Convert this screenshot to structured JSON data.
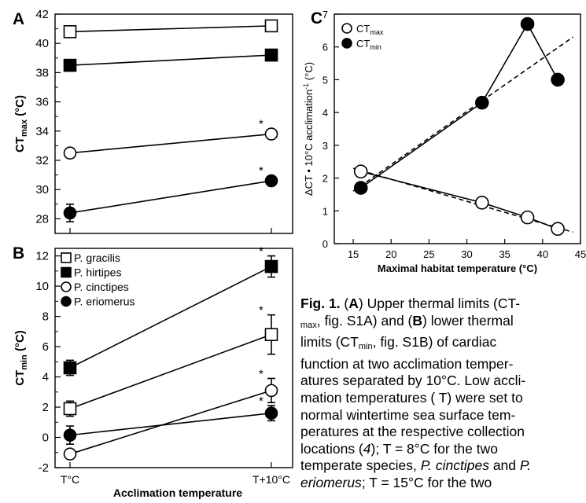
{
  "chart_data": [
    {
      "id": "A",
      "type": "line",
      "panel_label": "A",
      "ylabel": "CTmax (°C)",
      "ylabel_main": "CT",
      "ylabel_sub": "max",
      "ylabel_unit": " (°C)",
      "ylim": [
        27,
        42
      ],
      "yticks": [
        28,
        30,
        32,
        34,
        36,
        38,
        40,
        42
      ],
      "categories": [
        "T°C",
        "T+10°C"
      ],
      "series": [
        {
          "marker": "open-square",
          "values": [
            40.8,
            41.2
          ],
          "err": [
            0.3,
            0.3
          ],
          "sig": [
            false,
            false
          ]
        },
        {
          "marker": "filled-square",
          "values": [
            38.5,
            39.2
          ],
          "err": [
            0.1,
            0.1
          ],
          "sig": [
            false,
            false
          ]
        },
        {
          "marker": "open-circle",
          "values": [
            32.5,
            33.8
          ],
          "err": [
            0.1,
            0.1
          ],
          "sig": [
            false,
            true
          ]
        },
        {
          "marker": "filled-circle",
          "values": [
            28.4,
            30.6
          ],
          "err": [
            0.6,
            0.1
          ],
          "sig": [
            false,
            true
          ]
        }
      ]
    },
    {
      "id": "B",
      "type": "line",
      "panel_label": "B",
      "ylabel": "CTmin (°C)",
      "ylabel_main": "CT",
      "ylabel_sub": "min",
      "ylabel_unit": " (°C)",
      "xlabel": "Acclimation temperature",
      "ylim": [
        -2,
        12.5
      ],
      "yticks": [
        -2,
        0,
        2,
        4,
        6,
        8,
        10,
        12
      ],
      "categories": [
        "T°C",
        "T+10°C"
      ],
      "legend": [
        "P. gracilis",
        "P. hirtipes",
        "P. cinctipes",
        "P. eriomerus"
      ],
      "series": [
        {
          "name": "P. gracilis",
          "marker": "open-square",
          "values": [
            1.9,
            6.8
          ],
          "err": [
            0.5,
            1.3
          ],
          "sig": [
            false,
            true
          ]
        },
        {
          "name": "P. hirtipes",
          "marker": "filled-square",
          "values": [
            4.6,
            11.3
          ],
          "err": [
            0.5,
            0.7
          ],
          "sig": [
            false,
            true
          ]
        },
        {
          "name": "P. cinctipes",
          "marker": "open-circle",
          "values": [
            -1.1,
            3.1
          ],
          "err": [
            0.1,
            0.8
          ],
          "sig": [
            false,
            true
          ]
        },
        {
          "name": "P. eriomerus",
          "marker": "filled-circle",
          "values": [
            0.15,
            1.6
          ],
          "err": [
            0.6,
            0.5
          ],
          "sig": [
            false,
            true
          ]
        }
      ]
    },
    {
      "id": "C",
      "type": "scatter",
      "panel_label": "C",
      "ylabel": "ΔCT • 10°C acclimation-1 (°C)",
      "ylabel_main": "ΔCT • 10°C acclimation",
      "ylabel_sup": "-1",
      "ylabel_unit": " (°C)",
      "xlabel": "Maximal habitat temperature (°C)",
      "xlim": [
        12.5,
        45
      ],
      "xticks": [
        15,
        20,
        25,
        30,
        35,
        40,
        45
      ],
      "ylim": [
        0,
        7
      ],
      "yticks": [
        0,
        1,
        2,
        3,
        4,
        5,
        6,
        7
      ],
      "legend": [
        {
          "main": "CT",
          "sub": "max",
          "marker": "open-circle"
        },
        {
          "main": "CT",
          "sub": "min",
          "marker": "filled-circle"
        }
      ],
      "series": [
        {
          "name": "CTmax",
          "marker": "open-circle",
          "x": [
            16,
            32,
            38,
            42
          ],
          "y": [
            2.2,
            1.25,
            0.8,
            0.45
          ],
          "fit": [
            [
              16,
              2.2
            ],
            [
              42,
              0.45
            ]
          ],
          "dashed_fit": [
            [
              15,
              2.3
            ],
            [
              44,
              0.35
            ]
          ]
        },
        {
          "name": "CTmin",
          "marker": "filled-circle",
          "x": [
            16,
            32,
            38,
            42
          ],
          "y": [
            1.7,
            4.3,
            6.7,
            5.0
          ],
          "fit": [
            [
              16,
              1.7
            ],
            [
              32,
              4.3
            ]
          ],
          "dashed_fit": [
            [
              15,
              1.6
            ],
            [
              44,
              6.3
            ]
          ]
        }
      ]
    }
  ],
  "caption": {
    "fig": "Fig. 1.",
    "l1_a": " (",
    "A": "A",
    "l1_b": ") Upper thermal limits (CT-",
    "max_sub": "max",
    "l2": ", fig. S1A) and (",
    "B": "B",
    "l2_b": ") lower thermal",
    "l3_a": "limits (CT",
    "min_sub": "min",
    "l3_b": ", fig. S1B) of cardiac",
    "l4": "function at two acclimation temper-",
    "l5": "atures separated by 10°C. Low accli-",
    "l6": "mation temperatures ( T) were set to",
    "l7": "normal wintertime sea surface tem-",
    "l8": "peratures at the respective collection",
    "l9_a": "locations (",
    "ref": "4",
    "l9_b": "); T = 8°C for the two",
    "l10_a": "temperate species, ",
    "sp1": "P. cinctipes",
    "l10_b": " and ",
    "sp2_a": "P.",
    "sp2_b": "eriomerus",
    "l11": "; T = 15°C for the two"
  }
}
